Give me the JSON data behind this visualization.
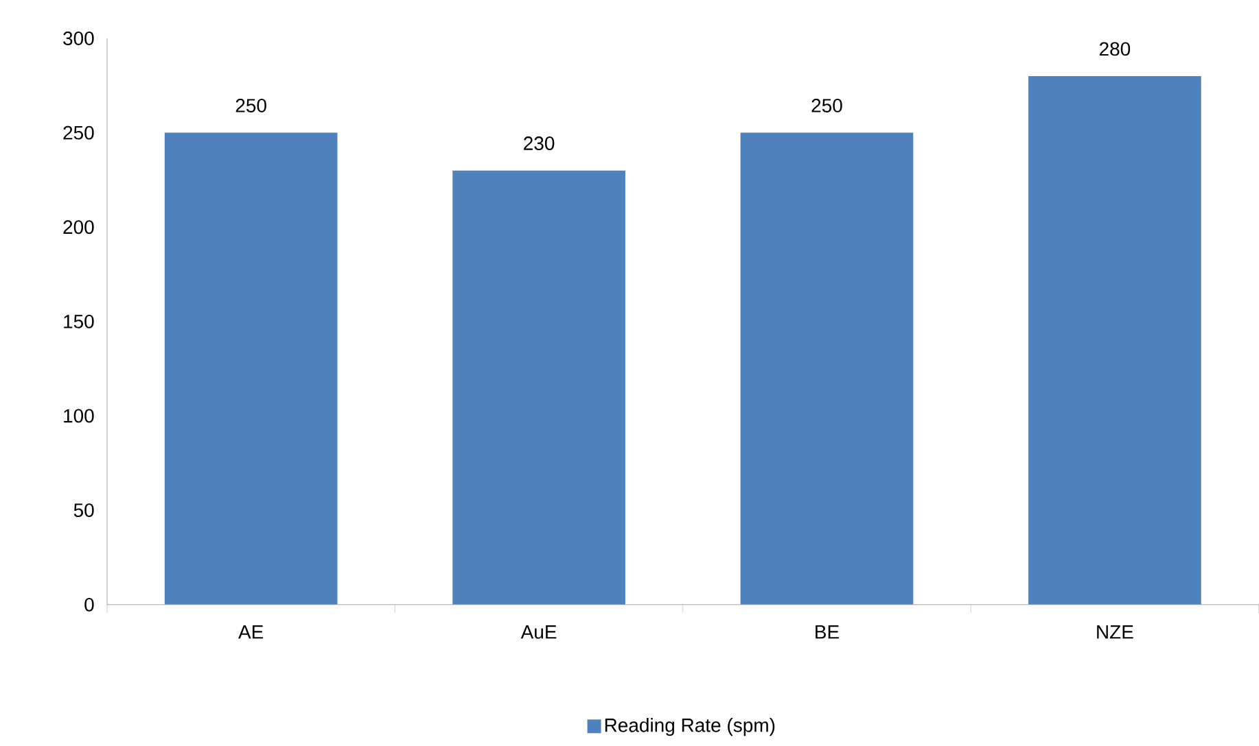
{
  "chart_data": {
    "type": "bar",
    "categories": [
      "AE",
      "AuE",
      "BE",
      "NZE"
    ],
    "series": [
      {
        "name": "Reading Rate (spm)",
        "color": "#4f81bd",
        "values": [
          250,
          230,
          250,
          280
        ]
      }
    ],
    "ylim": [
      0,
      300
    ],
    "yticks": [
      0,
      50,
      100,
      150,
      200,
      250,
      300
    ],
    "data_labels": true,
    "legend": "bottom",
    "grid": false
  }
}
